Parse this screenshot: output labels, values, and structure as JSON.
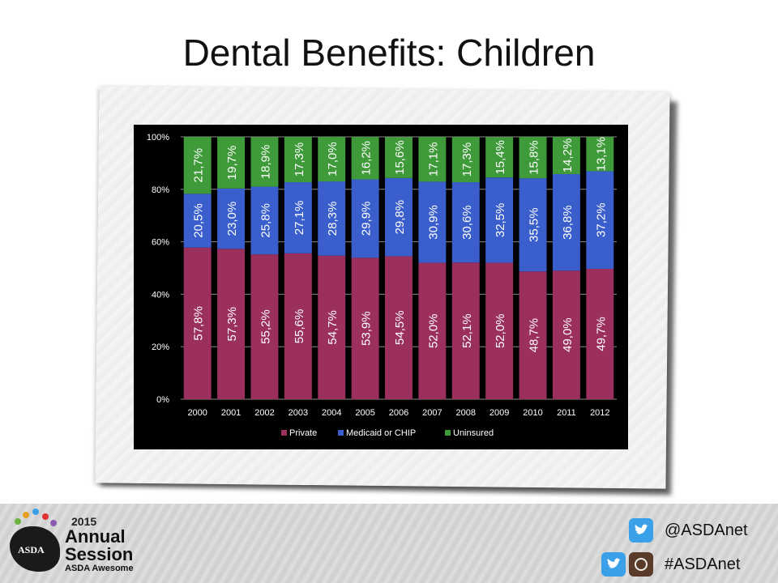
{
  "slide": {
    "title": "Dental Benefits: Children"
  },
  "chart_data": {
    "type": "bar",
    "stacked": true,
    "categories": [
      "2000",
      "2001",
      "2002",
      "2003",
      "2004",
      "2005",
      "2006",
      "2007",
      "2008",
      "2009",
      "2010",
      "2011",
      "2012"
    ],
    "series": [
      {
        "name": "Private",
        "color": "#9b2f5e",
        "values": [
          57.8,
          57.3,
          55.2,
          55.6,
          54.7,
          53.9,
          54.5,
          52.0,
          52.1,
          52.0,
          48.7,
          49.0,
          49.7
        ],
        "labels": [
          "57,8%",
          "57,3%",
          "55,2%",
          "55,6%",
          "54,7%",
          "53,9%",
          "54,5%",
          "52,0%",
          "52,1%",
          "52,0%",
          "48,7%",
          "49,0%",
          "49,7%"
        ]
      },
      {
        "name": "Medicaid or CHIP",
        "color": "#3a5fcd",
        "values": [
          20.5,
          23.0,
          25.8,
          27.1,
          28.3,
          29.9,
          29.8,
          30.9,
          30.6,
          32.5,
          35.5,
          36.8,
          37.2
        ],
        "labels": [
          "20,5%",
          "23,0%",
          "25,8%",
          "27,1%",
          "28,3%",
          "29,9%",
          "29,8%",
          "30,9%",
          "30,6%",
          "32,5%",
          "35,5%",
          "36,8%",
          "37,2%"
        ]
      },
      {
        "name": "Uninsured",
        "color": "#3f9a3a",
        "values": [
          21.7,
          19.7,
          18.9,
          17.3,
          17.0,
          16.2,
          15.6,
          17.1,
          17.3,
          15.4,
          15.8,
          14.2,
          13.1
        ],
        "labels": [
          "21,7%",
          "19,7%",
          "18,9%",
          "17,3%",
          "17,0%",
          "16,2%",
          "15,6%",
          "17,1%",
          "17,3%",
          "15,4%",
          "15,8%",
          "14,2%",
          "13,1%"
        ]
      }
    ],
    "y_ticks": [
      "0%",
      "20%",
      "40%",
      "60%",
      "80%",
      "100%"
    ],
    "ylim": [
      0,
      100
    ],
    "grid": true,
    "legend_position": "bottom"
  },
  "footer": {
    "logo": {
      "year": "2015",
      "line1": "Annual",
      "line2": "Session",
      "line3": "ASDA Awesome",
      "brain_text": "ASDA"
    },
    "twitter_handle": "@ASDAnet",
    "hashtag": "#ASDAnet",
    "icons": [
      "twitter-icon",
      "instagram-icon"
    ]
  }
}
